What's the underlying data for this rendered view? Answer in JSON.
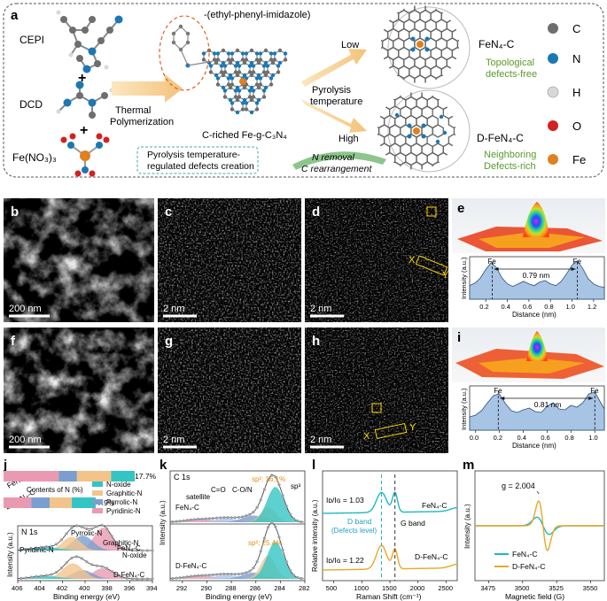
{
  "panel_a": {
    "label": "a",
    "precursors": [
      "CEPI",
      "DCD",
      "Fe(NO₃)₃"
    ],
    "plus": [
      "+",
      "+"
    ],
    "step1": [
      "Thermal",
      "Polymerization"
    ],
    "side_group_label": "-(ethyl-phenyl-imidazole)",
    "product_label": "C-riched Fe-g-C₃N₄",
    "note": [
      "Pyrolysis temperature-",
      "regulated defects creation"
    ],
    "pyrolysis": [
      "Pyrolysis",
      "temperature"
    ],
    "low": "Low",
    "high": "High",
    "removal": [
      "N removal",
      "C rearrangement"
    ],
    "product_low": "FeN₄-C",
    "product_low_desc": [
      "Topological",
      "defects-free"
    ],
    "product_high": "D-FeN₄-C",
    "product_high_desc": [
      "Neighboring",
      "Defects-rich"
    ],
    "legend": [
      {
        "symbol": "C",
        "color": "#6e6e6e"
      },
      {
        "symbol": "N",
        "color": "#1a78b4"
      },
      {
        "symbol": "H",
        "color": "#d8d8d8"
      },
      {
        "symbol": "O",
        "color": "#d42020"
      },
      {
        "symbol": "Fe",
        "color": "#e08020"
      }
    ]
  },
  "micrographs": {
    "b": {
      "label": "b",
      "scale": "200 nm"
    },
    "c": {
      "label": "c",
      "scale": "2 nm"
    },
    "d": {
      "label": "d",
      "scale": "2 nm",
      "x": "X",
      "y": "Y"
    },
    "f": {
      "label": "f",
      "scale": "200 nm"
    },
    "g": {
      "label": "g",
      "scale": "2 nm"
    },
    "h": {
      "label": "h",
      "scale": "2 nm",
      "x": "X",
      "y": "Y"
    }
  },
  "panel_e": {
    "label": "e",
    "chart_data": {
      "type": "area",
      "xlabel": "Distance (nm)",
      "ylabel": "Intensity (a.u.)",
      "x_ticks": [
        "0.2",
        "0.4",
        "0.6",
        "0.8",
        "1.0",
        "1.2"
      ],
      "xlim": [
        0.05,
        1.3
      ],
      "x": [
        0.05,
        0.1,
        0.15,
        0.2,
        0.25,
        0.3,
        0.35,
        0.4,
        0.45,
        0.5,
        0.55,
        0.6,
        0.65,
        0.7,
        0.75,
        0.8,
        0.85,
        0.9,
        0.95,
        1.0,
        1.05,
        1.1,
        1.15,
        1.2,
        1.25,
        1.3
      ],
      "y": [
        0.32,
        0.38,
        0.5,
        0.7,
        0.86,
        0.74,
        0.5,
        0.36,
        0.3,
        0.36,
        0.42,
        0.36,
        0.32,
        0.4,
        0.44,
        0.36,
        0.32,
        0.42,
        0.6,
        0.8,
        0.9,
        0.72,
        0.48,
        0.36,
        0.3,
        0.28
      ],
      "markers": [
        {
          "label": "Fe",
          "x": 0.26
        },
        {
          "label": "Fe",
          "x": 1.05
        }
      ],
      "distance": "0.79 nm"
    }
  },
  "panel_i": {
    "label": "i",
    "chart_data": {
      "type": "area",
      "xlabel": "Distance (nm)",
      "ylabel": "Intensity (a.u.)",
      "x_ticks": [
        "0.0",
        "0.2",
        "0.4",
        "0.6",
        "0.8",
        "1.0"
      ],
      "xlim": [
        -0.05,
        1.08
      ],
      "x": [
        -0.05,
        0.0,
        0.05,
        0.1,
        0.15,
        0.2,
        0.25,
        0.3,
        0.35,
        0.4,
        0.45,
        0.5,
        0.55,
        0.6,
        0.65,
        0.7,
        0.75,
        0.8,
        0.85,
        0.9,
        0.95,
        1.0,
        1.05,
        1.08
      ],
      "y": [
        0.3,
        0.34,
        0.44,
        0.62,
        0.78,
        0.82,
        0.6,
        0.44,
        0.4,
        0.46,
        0.5,
        0.42,
        0.4,
        0.54,
        0.62,
        0.48,
        0.46,
        0.56,
        0.52,
        0.62,
        0.82,
        0.86,
        0.62,
        0.48
      ],
      "markers": [
        {
          "label": "Fe",
          "x": 0.19
        },
        {
          "label": "Fe",
          "x": 1.0
        }
      ],
      "distance": "0.81 nm"
    }
  },
  "panel_j": {
    "label": "j",
    "bar_titles": [
      "FeN₄-C",
      "D-FeN₄-C"
    ],
    "bar_values": [
      "17.7%",
      "7.9%"
    ],
    "bar_segments": [
      [
        {
          "name": "Pyridinic-N",
          "value": 42,
          "color": "#e99ab1"
        },
        {
          "name": "Pyrrolic-N",
          "value": 14,
          "color": "#7b9ed0"
        },
        {
          "name": "Graphitic-N",
          "value": 26,
          "color": "#f2c48c"
        },
        {
          "name": "N-oxide",
          "value": 18,
          "color": "#34c4c4"
        }
      ],
      [
        {
          "name": "Pyridinic-N",
          "value": 30,
          "color": "#e99ab1"
        },
        {
          "name": "Pyrrolic-N",
          "value": 20,
          "color": "#7b9ed0"
        },
        {
          "name": "Graphitic-N",
          "value": 24,
          "color": "#f2c48c"
        },
        {
          "name": "N-oxide",
          "value": 26,
          "color": "#34c4c4"
        }
      ]
    ],
    "contents_label": "Contents of N (%)",
    "legend": [
      {
        "name": "N-oxide",
        "color": "#34c4c4"
      },
      {
        "name": "Graphitic-N",
        "color": "#f2c48c"
      },
      {
        "name": "Pyrrolic-N",
        "color": "#7b9ed0"
      },
      {
        "name": "Pyridinic-N",
        "color": "#e99ab1"
      }
    ],
    "spectrum_title": "N 1s",
    "peak_labels": [
      "Pyrrolic-N",
      "Graphitic-N",
      "Pyridinic-N",
      "N-oxide"
    ],
    "series_labels": [
      "FeN₄-C",
      "D-FeN₄-C"
    ],
    "chart_data": {
      "type": "line",
      "xlabel": "Binding energy (eV)",
      "ylabel": "Intensity (a.u.)",
      "x_ticks": [
        "394",
        "396",
        "398",
        "400",
        "402",
        "404",
        "406"
      ],
      "xlim": [
        406,
        394
      ]
    }
  },
  "panel_k": {
    "label": "k",
    "spectrum_title": "C 1s",
    "annotations": [
      "satellite",
      "C=O",
      "C-O/N",
      "sp²: 16.1%",
      "sp³",
      "sp²: 25.4%"
    ],
    "series_labels": [
      "FeN₄-C",
      "D-FeN₄-C"
    ],
    "chart_data": {
      "type": "line",
      "xlabel": "Binding energy (eV)",
      "ylabel": "Intensity (a.u.)",
      "x_ticks": [
        "292",
        "290",
        "288",
        "286",
        "284",
        "282"
      ],
      "xlim": [
        293,
        282
      ]
    }
  },
  "panel_l": {
    "label": "l",
    "ratio_top": "Iᴅ/Iɢ = 1.03",
    "ratio_bottom": "Iᴅ/Iɢ = 1.22",
    "d_band": [
      "D band",
      "(Defects level)"
    ],
    "g_band": "G band",
    "series_labels": [
      "FeN₄-C",
      "D-FeN₄-C"
    ],
    "chart_data": {
      "type": "line",
      "xlabel": "Raman Shift (cm⁻¹)",
      "ylabel": "Relative intensity (a.u.)",
      "x_ticks": [
        "500",
        "1000",
        "1500",
        "2000",
        "2500"
      ],
      "xlim": [
        300,
        2700
      ]
    }
  },
  "panel_m": {
    "label": "m",
    "g_value": "g = 2.004",
    "chart_data": {
      "type": "line",
      "xlabel": "Magnetic field (G)",
      "ylabel": "Intensity (a.u.)",
      "x_ticks": [
        "3475",
        "3500",
        "3525",
        "3550"
      ],
      "xlim": [
        3465,
        3560
      ],
      "series": [
        {
          "name": "FeN₄-C",
          "color": "#1fb8c4"
        },
        {
          "name": "D-FeN₄-C",
          "color": "#e8a826"
        }
      ]
    }
  }
}
